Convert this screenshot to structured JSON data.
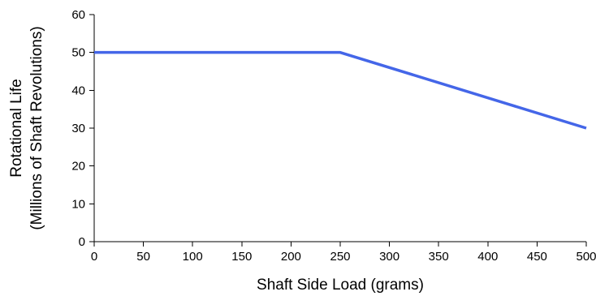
{
  "chart_data": {
    "type": "line",
    "title": "",
    "xlabel": "Shaft Side Load (grams)",
    "ylabel_line1": "Rotational Life",
    "ylabel_line2": "(Millions of Shaft Revolutions)",
    "xlim": [
      0,
      500
    ],
    "ylim": [
      0,
      60
    ],
    "xticks": [
      0,
      50,
      100,
      150,
      200,
      250,
      300,
      350,
      400,
      450,
      500
    ],
    "yticks": [
      0,
      10,
      20,
      30,
      40,
      50,
      60
    ],
    "grid": false,
    "legend": "none",
    "series": [
      {
        "color": "#4466e8",
        "points": [
          [
            0,
            50
          ],
          [
            250,
            50
          ],
          [
            500,
            30
          ]
        ]
      }
    ]
  }
}
